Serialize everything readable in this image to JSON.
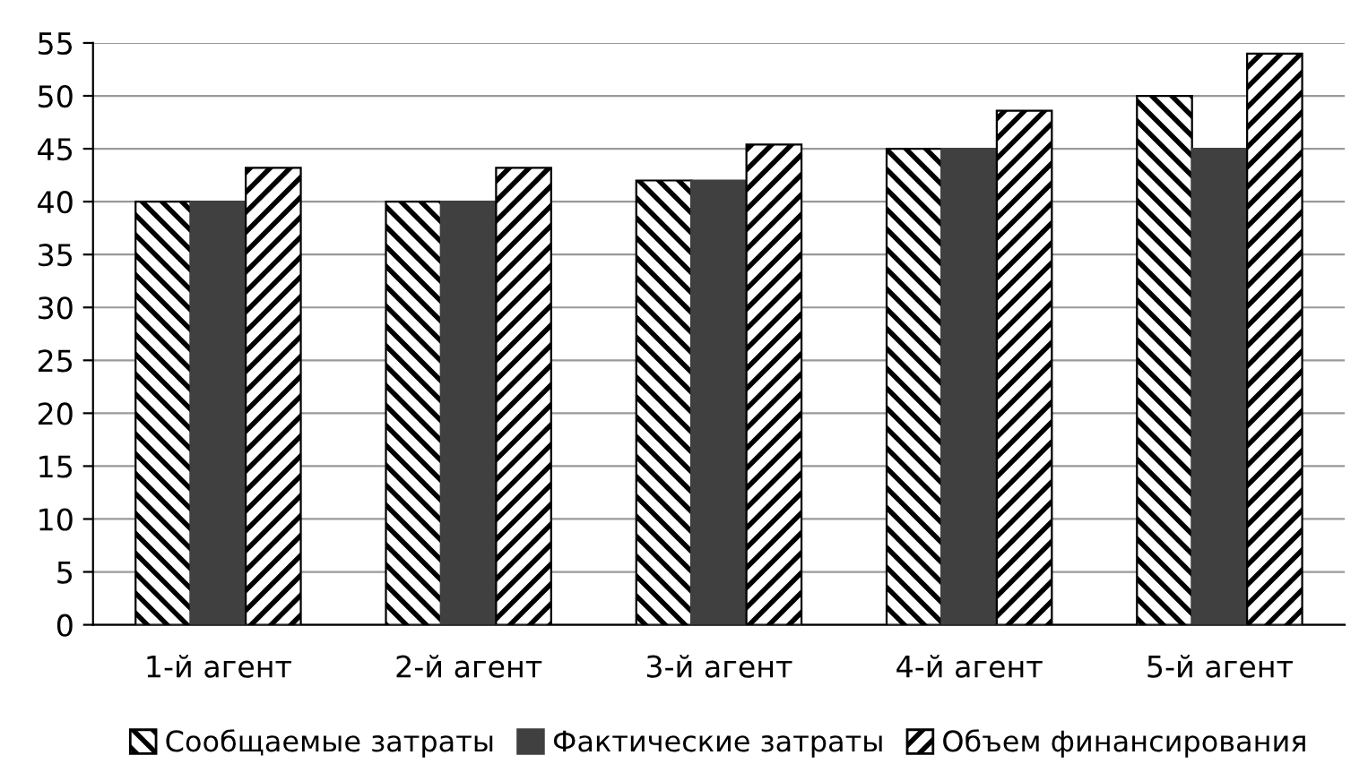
{
  "chart_data": {
    "type": "bar",
    "categories": [
      "1-й агент",
      "2-й агент",
      "3-й агент",
      "4-й агент",
      "5-й агент"
    ],
    "series": [
      {
        "name": "Сообщаемые затраты",
        "color": "#000000",
        "values": [
          40,
          40,
          42,
          45,
          50
        ]
      },
      {
        "name": "Фактические затраты",
        "color": "#404040",
        "values": [
          40,
          40,
          42,
          45,
          45
        ]
      },
      {
        "name": "Объем финансирования",
        "color": "#000000",
        "values": [
          43.2,
          43.2,
          45.4,
          48.6,
          54
        ]
      }
    ],
    "ylim": [
      0,
      55
    ],
    "yticks": [
      0,
      5,
      10,
      15,
      20,
      25,
      30,
      35,
      40,
      45,
      50,
      55
    ],
    "grid": "y",
    "legend": "bottom"
  }
}
